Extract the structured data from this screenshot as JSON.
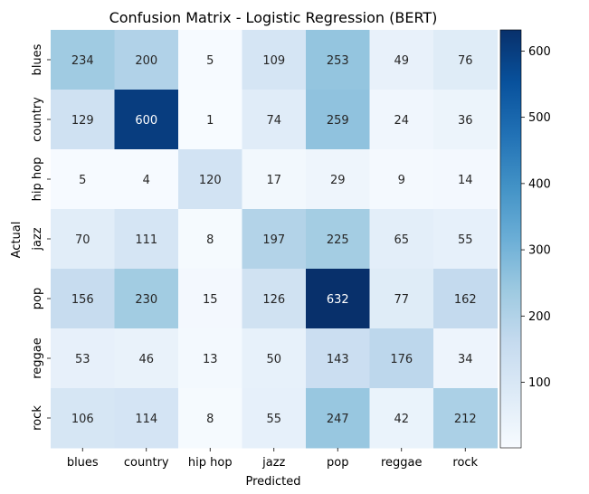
{
  "chart_data": {
    "type": "heatmap",
    "title": "Confusion Matrix - Logistic Regression (BERT)",
    "xlabel": "Predicted",
    "ylabel": "Actual",
    "x_categories": [
      "blues",
      "country",
      "hip hop",
      "jazz",
      "pop",
      "reggae",
      "rock"
    ],
    "y_categories": [
      "blues",
      "country",
      "hip hop",
      "jazz",
      "pop",
      "reggae",
      "rock"
    ],
    "values": [
      [
        234,
        200,
        5,
        109,
        253,
        49,
        76
      ],
      [
        129,
        600,
        1,
        74,
        259,
        24,
        36
      ],
      [
        5,
        4,
        120,
        17,
        29,
        9,
        14
      ],
      [
        70,
        111,
        8,
        197,
        225,
        65,
        55
      ],
      [
        156,
        230,
        15,
        126,
        632,
        77,
        162
      ],
      [
        53,
        46,
        13,
        50,
        143,
        176,
        34
      ],
      [
        106,
        114,
        8,
        55,
        247,
        42,
        212
      ]
    ],
    "colormap": "Blues",
    "colorbar": {
      "range": [
        1,
        632
      ],
      "ticks": [
        100,
        200,
        300,
        400,
        500,
        600
      ]
    }
  }
}
